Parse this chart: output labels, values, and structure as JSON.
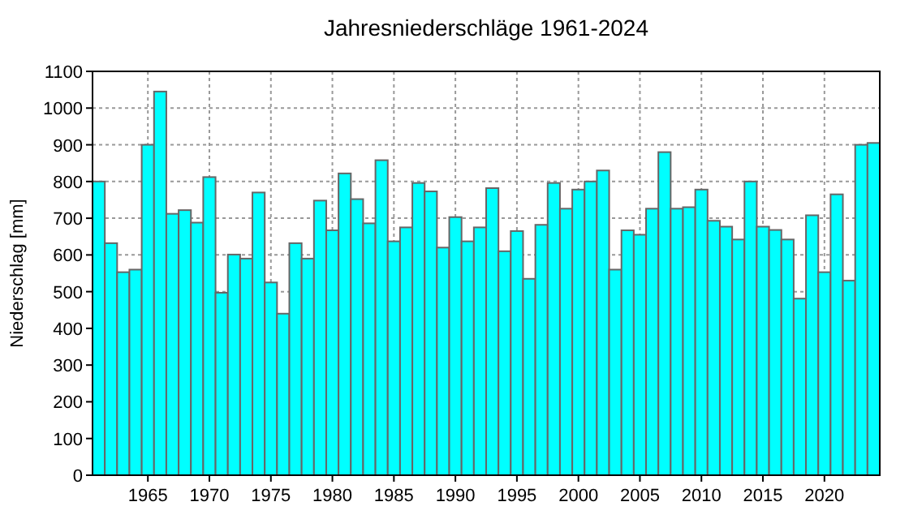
{
  "chart_data": {
    "type": "bar",
    "title": "Jahresniederschläge 1961-2024",
    "ylabel": "Niederschlag [mm]",
    "x": [
      1961,
      1962,
      1963,
      1964,
      1965,
      1966,
      1967,
      1968,
      1969,
      1970,
      1971,
      1972,
      1973,
      1974,
      1975,
      1976,
      1977,
      1978,
      1979,
      1980,
      1981,
      1982,
      1983,
      1984,
      1985,
      1986,
      1987,
      1988,
      1989,
      1990,
      1991,
      1992,
      1993,
      1994,
      1995,
      1996,
      1997,
      1998,
      1999,
      2000,
      2001,
      2002,
      2003,
      2004,
      2005,
      2006,
      2007,
      2008,
      2009,
      2010,
      2011,
      2012,
      2013,
      2014,
      2015,
      2016,
      2017,
      2018,
      2019,
      2020,
      2021,
      2022,
      2023,
      2024
    ],
    "values": [
      800,
      632,
      553,
      560,
      900,
      1045,
      712,
      722,
      688,
      812,
      497,
      601,
      590,
      770,
      525,
      440,
      632,
      590,
      748,
      667,
      822,
      752,
      686,
      858,
      637,
      675,
      796,
      773,
      620,
      703,
      637,
      675,
      782,
      610,
      665,
      535,
      682,
      796,
      726,
      778,
      800,
      830,
      560,
      667,
      655,
      726,
      880,
      726,
      730,
      778,
      693,
      677,
      642,
      800,
      677,
      668,
      642,
      481,
      708,
      553,
      765,
      530,
      900,
      905
    ],
    "color": "#00ffff",
    "xlim": [
      1960.5,
      2024.5
    ],
    "xticks": [
      1965,
      1970,
      1975,
      1980,
      1985,
      1990,
      1995,
      2000,
      2005,
      2010,
      2015,
      2020
    ],
    "ylim": [
      0,
      1100
    ],
    "yticks": [
      0,
      100,
      200,
      300,
      400,
      500,
      600,
      700,
      800,
      900,
      1000,
      1100
    ],
    "grid": true
  }
}
